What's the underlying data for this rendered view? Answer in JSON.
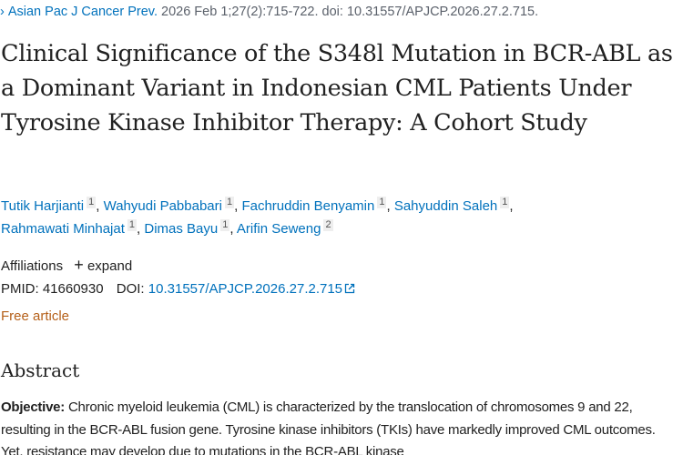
{
  "citation": {
    "journal": "Asian Pac J Cancer Prev.",
    "details": "2026 Feb 1;27(2):715-722. doi: 10.31557/APJCP.2026.27.2.715."
  },
  "title": "Clinical Significance of the S348l Mutation in BCR-ABL as a Dominant Variant in Indonesian CML Patients Under Tyrosine Kinase Inhibitor Therapy: A Cohort Study",
  "authors": [
    {
      "name": "Tutik Harjianti",
      "aff": "1"
    },
    {
      "name": "Wahyudi Pabbabari",
      "aff": "1"
    },
    {
      "name": "Fachruddin Benyamin",
      "aff": "1"
    },
    {
      "name": "Sahyuddin Saleh",
      "aff": "1"
    },
    {
      "name": "Rahmawati Minhajat",
      "aff": "1"
    },
    {
      "name": "Dimas Bayu",
      "aff": "1"
    },
    {
      "name": "Arifin Seweng",
      "aff": "2"
    }
  ],
  "affiliations": {
    "label": "Affiliations",
    "expand": "expand"
  },
  "ids": {
    "pmid_label": "PMID:",
    "pmid": "41660930",
    "doi_label": "DOI:",
    "doi": "10.31557/APJCP.2026.27.2.715"
  },
  "free_article": "Free article",
  "abstract": {
    "heading": "Abstract",
    "objective_label": "Objective:",
    "text": "Chronic myeloid leukemia (CML) is characterized by the translocation of chromosomes 9 and 22, resulting in the BCR-ABL fusion gene. Tyrosine kinase inhibitors (TKIs) have markedly improved CML outcomes. Yet, resistance may develop due to mutations in the BCR-ABL kinase"
  }
}
